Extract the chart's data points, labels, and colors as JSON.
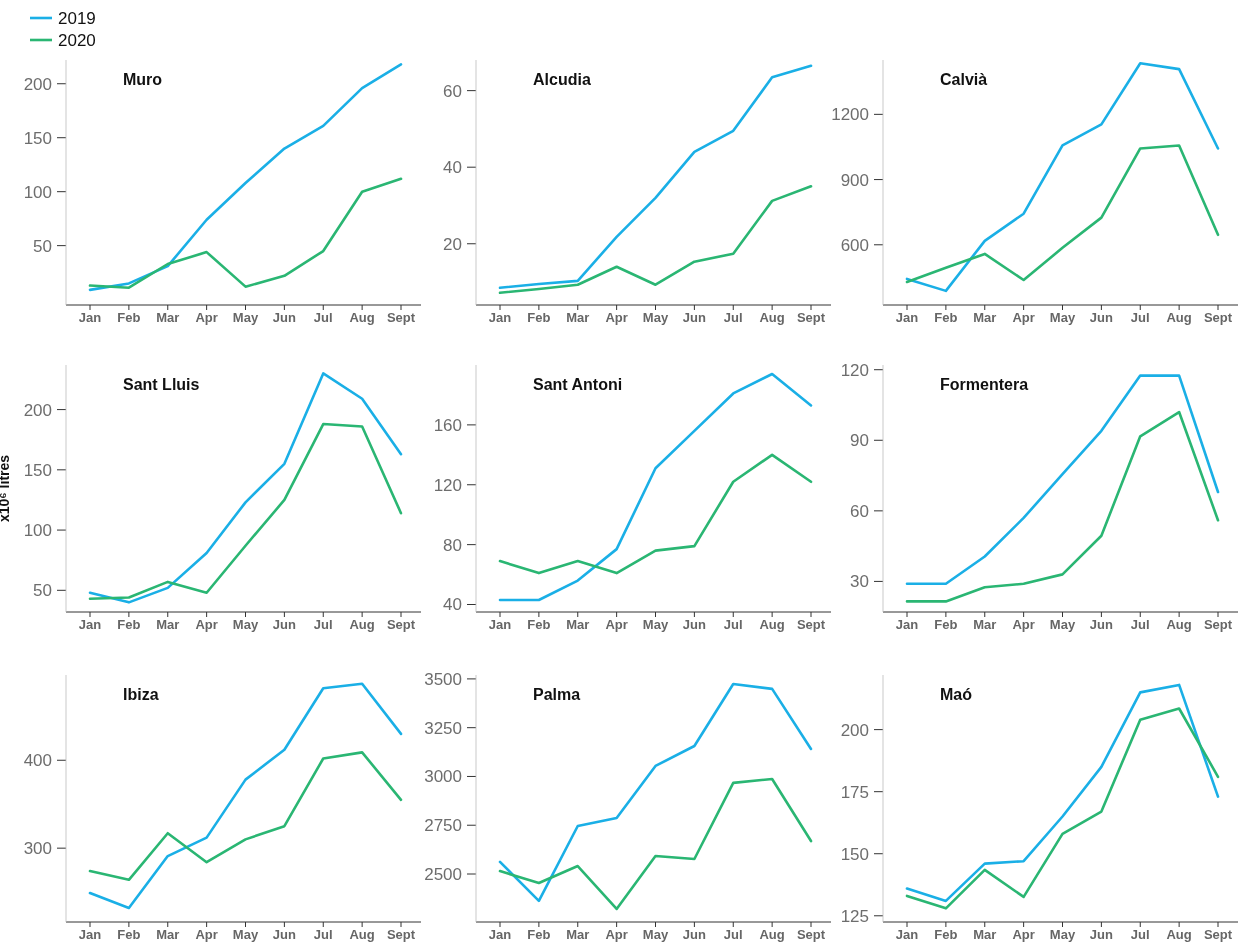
{
  "chart_data": [
    {
      "type": "line",
      "title": "Muro",
      "categories": [
        "Jan",
        "Feb",
        "Mar",
        "Apr",
        "May",
        "Jun",
        "Jul",
        "Aug",
        "Sept"
      ],
      "legend": "top left",
      "ylim": [
        -5,
        222
      ],
      "yticks": [
        50,
        100,
        150,
        200
      ],
      "series": [
        {
          "name": "2019",
          "color": "#1aafe6",
          "values": [
            9,
            15,
            31,
            74,
            108,
            140,
            161,
            196,
            218
          ]
        },
        {
          "name": "2020",
          "color": "#2ab673",
          "values": [
            13,
            11,
            33,
            44,
            12,
            22,
            45,
            100,
            112
          ]
        }
      ]
    },
    {
      "type": "line",
      "title": "Alcudia",
      "categories": [
        "Jan",
        "Feb",
        "Mar",
        "Apr",
        "May",
        "Jun",
        "Jul",
        "Aug",
        "Sept"
      ],
      "ylim": [
        4,
        68
      ],
      "yticks": [
        20,
        40,
        60
      ],
      "series": [
        {
          "color": "#1aafe6",
          "values": [
            8.5,
            9.5,
            10.3,
            21.8,
            32,
            44,
            49.5,
            63.5,
            66.5
          ]
        },
        {
          "color": "#2ab673",
          "values": [
            7.2,
            8.2,
            9.3,
            14,
            9.3,
            15.3,
            17.4,
            31.2,
            35
          ]
        }
      ]
    },
    {
      "type": "line",
      "title": "Calvià",
      "categories": [
        "Jan",
        "Feb",
        "Mar",
        "Apr",
        "May",
        "Jun",
        "Jul",
        "Aug",
        "Sept"
      ],
      "ylim": [
        323,
        1450
      ],
      "yticks": [
        600,
        900,
        1200
      ],
      "series": [
        {
          "color": "#1aafe6",
          "values": [
            443,
            388,
            618,
            743,
            1057,
            1154,
            1435,
            1408,
            1043
          ]
        },
        {
          "color": "#2ab673",
          "values": [
            429,
            494,
            558,
            438,
            586,
            725,
            1043,
            1057,
            646
          ]
        }
      ]
    },
    {
      "type": "line",
      "title": "Sant Lluis",
      "ylabel": "x10⁶ litres",
      "categories": [
        "Jan",
        "Feb",
        "Mar",
        "Apr",
        "May",
        "Jun",
        "Jul",
        "Aug",
        "Sept"
      ],
      "ylim": [
        32,
        237
      ],
      "yticks": [
        50,
        100,
        150,
        200
      ],
      "series": [
        {
          "color": "#1aafe6",
          "values": [
            48,
            40,
            52,
            81,
            123,
            155,
            230,
            209,
            163
          ]
        },
        {
          "color": "#2ab673",
          "values": [
            43,
            44,
            57,
            48,
            87,
            125,
            188,
            186,
            114
          ]
        }
      ]
    },
    {
      "type": "line",
      "title": "Sant Antoni",
      "categories": [
        "Jan",
        "Feb",
        "Mar",
        "Apr",
        "May",
        "Jun",
        "Jul",
        "Aug",
        "Sept"
      ],
      "ylim": [
        35,
        200
      ],
      "yticks": [
        40,
        80,
        120,
        160
      ],
      "series": [
        {
          "color": "#1aafe6",
          "values": [
            43,
            43,
            56,
            77,
            131,
            156,
            181,
            194,
            173
          ]
        },
        {
          "color": "#2ab673",
          "values": [
            69,
            61,
            69,
            61,
            76,
            79,
            122,
            140,
            122
          ]
        }
      ]
    },
    {
      "type": "line",
      "title": "Formentera",
      "categories": [
        "Jan",
        "Feb",
        "Mar",
        "Apr",
        "May",
        "Jun",
        "Jul",
        "Aug",
        "Sept"
      ],
      "ylim": [
        17,
        122
      ],
      "yticks": [
        30,
        60,
        90,
        120
      ],
      "series": [
        {
          "color": "#1aafe6",
          "values": [
            29,
            29,
            40.6,
            57,
            75.6,
            94,
            117.5,
            117.5,
            68
          ]
        },
        {
          "color": "#2ab673",
          "values": [
            21.5,
            21.5,
            27.5,
            29,
            33,
            49.4,
            91.7,
            102,
            56
          ]
        }
      ]
    },
    {
      "type": "line",
      "title": "Ibiza",
      "categories": [
        "Jan",
        "Feb",
        "Mar",
        "Apr",
        "May",
        "Jun",
        "Jul",
        "Aug",
        "Sept"
      ],
      "ylim": [
        216,
        497
      ],
      "yticks": [
        300,
        400
      ],
      "series": [
        {
          "color": "#1aafe6",
          "values": [
            249,
            232,
            291,
            312,
            378,
            412,
            482,
            487,
            430
          ]
        },
        {
          "color": "#2ab673",
          "values": [
            274,
            264,
            317,
            284,
            310,
            325,
            402,
            409,
            355
          ]
        }
      ]
    },
    {
      "type": "line",
      "title": "Palma",
      "categories": [
        "Jan",
        "Feb",
        "Mar",
        "Apr",
        "May",
        "Jun",
        "Jul",
        "Aug",
        "Sept"
      ],
      "ylim": [
        2254,
        3520
      ],
      "yticks": [
        2500,
        2750,
        3000,
        3250,
        3500
      ],
      "series": [
        {
          "color": "#1aafe6",
          "values": [
            2562,
            2362,
            2746,
            2787,
            3054,
            3156,
            3474,
            3449,
            3141
          ]
        },
        {
          "color": "#2ab673",
          "values": [
            2515,
            2454,
            2541,
            2321,
            2592,
            2577,
            2967,
            2987,
            2669
          ]
        }
      ]
    },
    {
      "type": "line",
      "title": "Maó",
      "categories": [
        "Jan",
        "Feb",
        "Mar",
        "Apr",
        "May",
        "Jun",
        "Jul",
        "Aug",
        "Sept"
      ],
      "ylim": [
        122.5,
        222
      ],
      "yticks": [
        125,
        150,
        175,
        200
      ],
      "series": [
        {
          "color": "#1aafe6",
          "values": [
            136,
            131,
            146,
            147,
            165,
            185,
            215,
            218,
            173
          ]
        },
        {
          "color": "#2ab673",
          "values": [
            133,
            128,
            143.5,
            132.6,
            158,
            167,
            204,
            208.5,
            181
          ]
        }
      ]
    }
  ]
}
